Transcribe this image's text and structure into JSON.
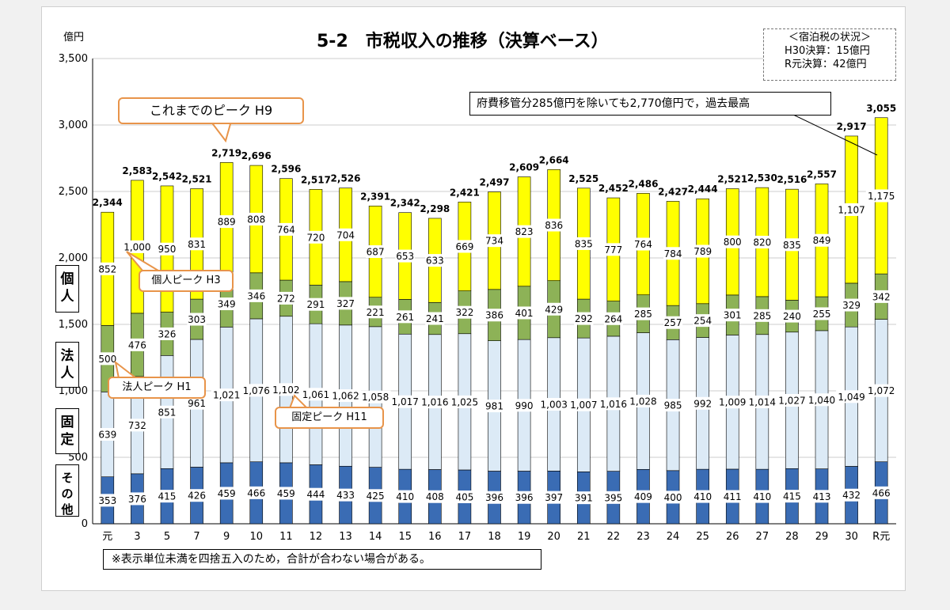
{
  "title": "5-2　市税収入の推移（決算ベース）",
  "y_unit": "億円",
  "lodging_tax": {
    "header": "＜宿泊税の状況＞",
    "lines": [
      "H30決算：15億円",
      "R元決算：42億円"
    ]
  },
  "notes": {
    "transfer": "府費移管分285億円を除いても2,770億円で，過去最高",
    "rounding": "※表示単位未満を四捨五入のため，合計が合わない場合がある。"
  },
  "callouts": {
    "peak_total": "これまでのピーク H9",
    "peak_individual": "個人ピーク H3",
    "peak_corporate": "法人ピーク H1",
    "peak_fixed": "固定ピーク H11"
  },
  "side_labels": [
    "個人",
    "法人",
    "固定",
    "その他"
  ],
  "colors": {
    "other": "#3a6cb4",
    "fixed": "#dceaf6",
    "corporate": "#8db257",
    "individual": "#ffff00"
  },
  "chart_data": {
    "type": "bar",
    "stacked": true,
    "ylim": [
      0,
      3500
    ],
    "yticks": [
      0,
      500,
      1000,
      1500,
      2000,
      2500,
      3000,
      3500
    ],
    "ytick_labels": [
      "0",
      "500",
      "1,000",
      "1,500",
      "2,000",
      "2,500",
      "3,000",
      "3,500"
    ],
    "grid": true,
    "categories": [
      "元",
      "3",
      "5",
      "7",
      "9",
      "10",
      "11",
      "12",
      "13",
      "14",
      "15",
      "16",
      "17",
      "18",
      "19",
      "20",
      "21",
      "22",
      "23",
      "24",
      "25",
      "26",
      "27",
      "28",
      "29",
      "30",
      "R元"
    ],
    "series": [
      {
        "name": "その他",
        "values": [
          353,
          376,
          415,
          426,
          459,
          466,
          459,
          444,
          433,
          425,
          410,
          408,
          405,
          396,
          396,
          397,
          391,
          395,
          409,
          400,
          410,
          411,
          410,
          415,
          413,
          432,
          466
        ]
      },
      {
        "name": "固定",
        "values": [
          639,
          732,
          851,
          961,
          1021,
          1076,
          1102,
          1061,
          1062,
          1058,
          1017,
          1016,
          1025,
          981,
          990,
          1003,
          1007,
          1016,
          1028,
          985,
          992,
          1009,
          1014,
          1027,
          1040,
          1049,
          1072
        ]
      },
      {
        "name": "法人",
        "values": [
          500,
          476,
          326,
          303,
          349,
          346,
          272,
          291,
          327,
          221,
          261,
          241,
          322,
          386,
          401,
          429,
          292,
          264,
          285,
          257,
          254,
          301,
          285,
          240,
          255,
          329,
          342
        ]
      },
      {
        "name": "個人",
        "values": [
          852,
          1000,
          950,
          831,
          889,
          808,
          764,
          720,
          704,
          687,
          653,
          633,
          669,
          734,
          823,
          836,
          835,
          777,
          764,
          784,
          789,
          800,
          820,
          835,
          849,
          1107,
          1175
        ]
      }
    ],
    "totals": [
      2344,
      2583,
      2542,
      2521,
      2719,
      2696,
      2596,
      2517,
      2526,
      2391,
      2342,
      2298,
      2421,
      2497,
      2609,
      2664,
      2525,
      2452,
      2486,
      2427,
      2444,
      2521,
      2530,
      2516,
      2557,
      2917,
      3055
    ]
  }
}
